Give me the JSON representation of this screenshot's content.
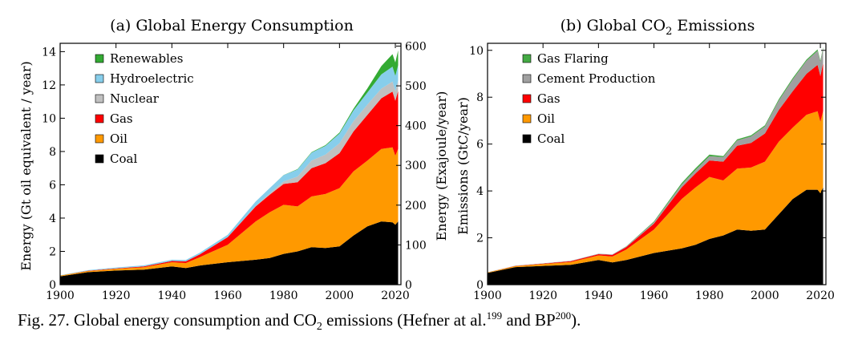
{
  "caption": {
    "lead": "Fig. 27. Global energy consumption and CO",
    "sub": "2",
    "mid": " emissions (Hefner at al.",
    "ref1": "199",
    "and": " and BP",
    "ref2": "200",
    "end": ")."
  },
  "chart_data": [
    {
      "type": "area",
      "stacked": true,
      "title": "(a) Global Energy Consumption",
      "ylabel": "Energy (Gt oil equivalent / year)",
      "y2label": "Energy (Exajoule/year)",
      "xlim": [
        1900,
        2022
      ],
      "ylim": [
        0,
        14.5
      ],
      "y2lim": [
        0,
        607
      ],
      "xticks": [
        1900,
        1920,
        1940,
        1960,
        1980,
        2000,
        2020
      ],
      "yticks": [
        0,
        2,
        4,
        6,
        8,
        10,
        12,
        14
      ],
      "y2ticks": [
        0,
        100,
        200,
        300,
        400,
        500,
        600
      ],
      "legend_position": "top-left",
      "x": [
        1900,
        1910,
        1920,
        1930,
        1940,
        1945,
        1950,
        1960,
        1970,
        1975,
        1980,
        1985,
        1990,
        1995,
        2000,
        2005,
        2010,
        2015,
        2019,
        2020,
        2021
      ],
      "series": [
        {
          "name": "Coal",
          "color": "#000000",
          "values": [
            0.5,
            0.75,
            0.85,
            0.9,
            1.1,
            1.0,
            1.15,
            1.35,
            1.5,
            1.6,
            1.85,
            2.0,
            2.25,
            2.2,
            2.3,
            2.95,
            3.5,
            3.8,
            3.75,
            3.6,
            3.8
          ]
        },
        {
          "name": "Oil",
          "color": "#FF9900",
          "values": [
            0.05,
            0.07,
            0.1,
            0.15,
            0.25,
            0.3,
            0.5,
            1.05,
            2.3,
            2.75,
            2.95,
            2.7,
            3.05,
            3.25,
            3.5,
            3.85,
            3.95,
            4.35,
            4.5,
            4.15,
            4.35
          ]
        },
        {
          "name": "Gas",
          "color": "#FF0000",
          "values": [
            0.0,
            0.02,
            0.03,
            0.05,
            0.07,
            0.1,
            0.17,
            0.45,
            0.9,
            1.05,
            1.25,
            1.45,
            1.7,
            1.85,
            2.1,
            2.4,
            2.75,
            3.05,
            3.35,
            3.3,
            3.5
          ]
        },
        {
          "name": "Nuclear",
          "color": "#C0C0C0",
          "values": [
            0,
            0,
            0,
            0,
            0,
            0,
            0,
            0.0,
            0.02,
            0.08,
            0.15,
            0.35,
            0.45,
            0.52,
            0.6,
            0.62,
            0.62,
            0.58,
            0.6,
            0.58,
            0.6
          ]
        },
        {
          "name": "Hydroelectric",
          "color": "#87CEEB",
          "values": [
            0.02,
            0.03,
            0.05,
            0.06,
            0.08,
            0.09,
            0.1,
            0.15,
            0.28,
            0.32,
            0.38,
            0.42,
            0.48,
            0.52,
            0.58,
            0.65,
            0.72,
            0.85,
            0.9,
            0.92,
            0.93
          ]
        },
        {
          "name": "Renewables",
          "color": "#33AA33",
          "values": [
            0,
            0,
            0,
            0,
            0,
            0,
            0,
            0,
            0,
            0,
            0.01,
            0.02,
            0.03,
            0.04,
            0.06,
            0.1,
            0.25,
            0.5,
            0.75,
            0.8,
            0.9
          ]
        }
      ]
    },
    {
      "type": "area",
      "stacked": true,
      "title": "(b) Global CO",
      "title_sub": "2",
      "title_end": " Emissions",
      "ylabel": "Emissions (GtC/year)",
      "xlim": [
        1900,
        2022
      ],
      "ylim": [
        0,
        10.3
      ],
      "xticks": [
        1900,
        1920,
        1940,
        1960,
        1980,
        2000,
        2020
      ],
      "yticks": [
        0,
        2,
        4,
        6,
        8,
        10
      ],
      "legend_position": "top-left",
      "x": [
        1900,
        1910,
        1920,
        1930,
        1940,
        1945,
        1950,
        1960,
        1970,
        1975,
        1980,
        1985,
        1990,
        1995,
        2000,
        2005,
        2010,
        2015,
        2019,
        2020,
        2021
      ],
      "series": [
        {
          "name": "Coal",
          "color": "#000000",
          "values": [
            0.5,
            0.75,
            0.8,
            0.85,
            1.05,
            0.95,
            1.05,
            1.35,
            1.55,
            1.7,
            1.95,
            2.1,
            2.35,
            2.3,
            2.35,
            3.0,
            3.65,
            4.05,
            4.05,
            3.9,
            4.15
          ]
        },
        {
          "name": "Oil",
          "color": "#FF9900",
          "values": [
            0.02,
            0.04,
            0.08,
            0.12,
            0.2,
            0.25,
            0.45,
            1.0,
            2.1,
            2.45,
            2.65,
            2.35,
            2.6,
            2.7,
            2.9,
            3.1,
            3.05,
            3.2,
            3.35,
            3.05,
            3.25
          ]
        },
        {
          "name": "Gas",
          "color": "#FF0000",
          "values": [
            0.0,
            0.01,
            0.02,
            0.03,
            0.05,
            0.07,
            0.1,
            0.25,
            0.5,
            0.6,
            0.7,
            0.8,
            0.98,
            1.05,
            1.2,
            1.35,
            1.55,
            1.75,
            1.98,
            1.95,
            2.05
          ]
        },
        {
          "name": "Cement Production",
          "color": "#A0A0A0",
          "values": [
            0.01,
            0.01,
            0.01,
            0.02,
            0.02,
            0.02,
            0.03,
            0.07,
            0.12,
            0.14,
            0.18,
            0.19,
            0.22,
            0.27,
            0.3,
            0.4,
            0.5,
            0.55,
            0.6,
            0.6,
            0.63
          ]
        },
        {
          "name": "Gas Flaring",
          "color": "#44AA44",
          "values": [
            0,
            0,
            0,
            0,
            0,
            0,
            0.01,
            0.03,
            0.07,
            0.08,
            0.07,
            0.05,
            0.05,
            0.05,
            0.05,
            0.06,
            0.06,
            0.06,
            0.06,
            0.06,
            0.06
          ]
        }
      ]
    }
  ]
}
